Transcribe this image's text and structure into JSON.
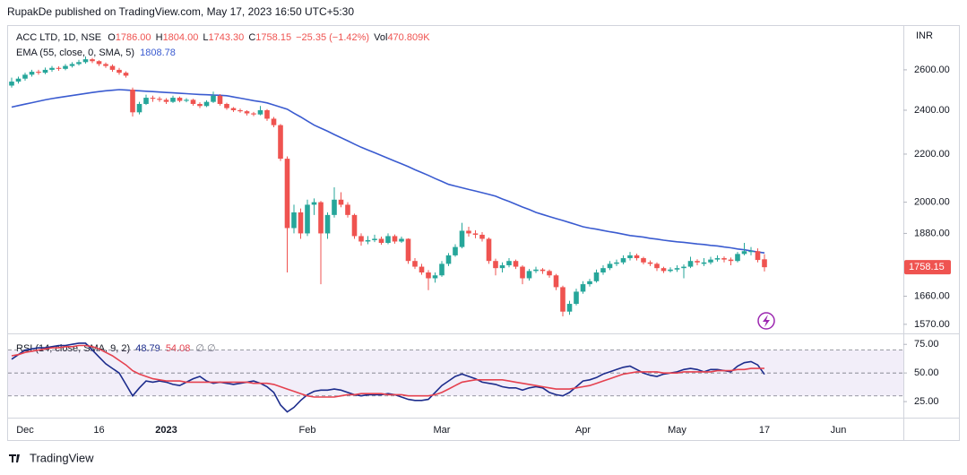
{
  "page_header": "RupakDe published on TradingView.com, May 17, 2023 16:50 UTC+5:30",
  "footer": "TradingView",
  "chart_data": [
    {
      "type": "candlestick",
      "legend": {
        "symbol": "ACC LTD, 1D, NSE",
        "fields": [
          {
            "label": "O",
            "value": "1786.00"
          },
          {
            "label": "H",
            "value": "1804.00"
          },
          {
            "label": "L",
            "value": "1743.30"
          },
          {
            "label": "C",
            "value": "1758.15"
          }
        ],
        "change": "−25.35 (−1.42%)",
        "volume_label": "Vol",
        "volume": "470.809K"
      },
      "currency": "INR",
      "price_tag": "1758.15",
      "up_color": "#26a69a",
      "down_color": "#ef5350",
      "log_scale": true,
      "ylim": [
        1542,
        2831
      ],
      "yticks": [
        {
          "value": 2600,
          "label": "2600.00"
        },
        {
          "value": 2400,
          "label": "2400.00"
        },
        {
          "value": 2200,
          "label": "2200.00"
        },
        {
          "value": 2000,
          "label": "2000.00"
        },
        {
          "value": 1880,
          "label": "1880.00"
        },
        {
          "value": 1660,
          "label": "1660.00"
        },
        {
          "value": 1570,
          "label": "1570.00"
        }
      ],
      "categories": [
        null,
        null,
        "Dec",
        null,
        null,
        null,
        null,
        null,
        null,
        null,
        null,
        null,
        null,
        "16",
        null,
        null,
        null,
        null,
        null,
        null,
        null,
        null,
        null,
        "2023",
        null,
        null,
        null,
        null,
        null,
        null,
        null,
        null,
        null,
        null,
        null,
        null,
        null,
        null,
        null,
        null,
        null,
        null,
        null,
        null,
        "Feb",
        null,
        null,
        null,
        null,
        null,
        null,
        null,
        null,
        null,
        null,
        null,
        null,
        null,
        null,
        null,
        null,
        null,
        null,
        null,
        "Mar",
        null,
        null,
        null,
        null,
        null,
        null,
        null,
        null,
        null,
        null,
        null,
        null,
        null,
        null,
        null,
        null,
        null,
        null,
        null,
        null,
        "Apr",
        null,
        null,
        null,
        null,
        null,
        null,
        null,
        null,
        null,
        null,
        null,
        null,
        null,
        "May",
        null,
        null,
        null,
        null,
        null,
        null,
        null,
        null,
        null,
        null,
        null,
        null,
        "17",
        null,
        null,
        null,
        null,
        null,
        null,
        null,
        null,
        null,
        null,
        "Jun",
        null,
        null,
        null,
        null,
        null,
        null,
        null,
        null,
        null
      ],
      "open": [
        2520,
        2540,
        2555,
        2575,
        2590,
        2585,
        2600,
        2610,
        2605,
        2620,
        2630,
        2640,
        2655,
        2645,
        2630,
        2620,
        2600,
        2585,
        2500,
        2390,
        2430,
        2460,
        2455,
        2450,
        2440,
        2460,
        2445,
        2450,
        2430,
        2420,
        2440,
        2470,
        2430,
        2410,
        2400,
        2395,
        2385,
        2380,
        2400,
        2360,
        2330,
        2180,
        1900,
        1960,
        1880,
        1990,
        2000,
        1880,
        1950,
        2010,
        1990,
        1950,
        1870,
        1850,
        1855,
        1860,
        1845,
        1870,
        1850,
        1860,
        1780,
        1760,
        1740,
        1720,
        1730,
        1770,
        1800,
        1830,
        1890,
        1880,
        1875,
        1860,
        1780,
        1755,
        1765,
        1780,
        1760,
        1720,
        1745,
        1750,
        1745,
        1730,
        1690,
        1610,
        1635,
        1675,
        1700,
        1710,
        1740,
        1755,
        1770,
        1775,
        1790,
        1800,
        1790,
        1775,
        1770,
        1755,
        1745,
        1750,
        1755,
        1760,
        1780,
        1770,
        1775,
        1785,
        1790,
        1785,
        1780,
        1805,
        1812,
        1815,
        1786,
        null,
        null,
        null,
        null,
        null,
        null,
        null,
        null,
        null,
        null,
        null,
        null,
        null,
        null,
        null,
        null,
        null,
        null,
        null,
        null
      ],
      "high": [
        2560,
        2565,
        2585,
        2600,
        2600,
        2612,
        2620,
        2618,
        2630,
        2640,
        2652,
        2670,
        2662,
        2650,
        2638,
        2628,
        2610,
        2592,
        2510,
        2440,
        2475,
        2470,
        2465,
        2458,
        2470,
        2466,
        2458,
        2455,
        2438,
        2448,
        2490,
        2478,
        2436,
        2415,
        2408,
        2400,
        2392,
        2420,
        2405,
        2368,
        2335,
        2190,
        1990,
        1975,
        2010,
        2015,
        2005,
        1960,
        2060,
        2040,
        2000,
        1955,
        1880,
        1870,
        1875,
        1868,
        1880,
        1876,
        1868,
        1862,
        1790,
        1770,
        1748,
        1740,
        1780,
        1808,
        1840,
        1920,
        1905,
        1892,
        1885,
        1865,
        1788,
        1775,
        1790,
        1785,
        1765,
        1752,
        1760,
        1755,
        1750,
        1735,
        1695,
        1645,
        1685,
        1710,
        1718,
        1750,
        1765,
        1780,
        1785,
        1800,
        1812,
        1806,
        1795,
        1782,
        1775,
        1760,
        1758,
        1765,
        1768,
        1795,
        1786,
        1790,
        1795,
        1800,
        1796,
        1792,
        1812,
        1845,
        1830,
        1825,
        1804,
        null,
        null,
        null,
        null,
        null,
        null,
        null,
        null,
        null,
        null,
        null,
        null,
        null,
        null,
        null,
        null,
        null,
        null,
        null,
        null
      ],
      "low": [
        2510,
        2530,
        2545,
        2565,
        2575,
        2578,
        2590,
        2595,
        2598,
        2612,
        2622,
        2632,
        2635,
        2620,
        2610,
        2590,
        2575,
        2560,
        2370,
        2380,
        2425,
        2440,
        2440,
        2430,
        2435,
        2438,
        2438,
        2422,
        2410,
        2415,
        2435,
        2422,
        2402,
        2392,
        2388,
        2375,
        2372,
        2376,
        2350,
        2320,
        2170,
        1740,
        1880,
        1860,
        1870,
        1950,
        1700,
        1860,
        1940,
        1980,
        1940,
        1860,
        1835,
        1840,
        1848,
        1838,
        1840,
        1842,
        1845,
        1770,
        1752,
        1732,
        1680,
        1705,
        1725,
        1762,
        1795,
        1825,
        1868,
        1862,
        1850,
        1770,
        1730,
        1740,
        1758,
        1752,
        1700,
        1712,
        1738,
        1735,
        1722,
        1680,
        1595,
        1600,
        1630,
        1668,
        1692,
        1705,
        1732,
        1748,
        1762,
        1768,
        1782,
        1782,
        1768,
        1762,
        1745,
        1738,
        1740,
        1742,
        1720,
        1755,
        1765,
        1762,
        1768,
        1778,
        1775,
        1765,
        1775,
        1800,
        1800,
        1775,
        1743.3,
        null,
        null,
        null,
        null,
        null,
        null,
        null,
        null,
        null,
        null,
        null,
        null,
        null,
        null,
        null,
        null,
        null,
        null,
        null,
        null
      ],
      "close": [
        2540,
        2555,
        2575,
        2590,
        2585,
        2600,
        2610,
        2605,
        2620,
        2630,
        2640,
        2655,
        2645,
        2630,
        2620,
        2600,
        2585,
        2570,
        2390,
        2430,
        2460,
        2455,
        2450,
        2440,
        2460,
        2445,
        2450,
        2430,
        2420,
        2440,
        2470,
        2430,
        2410,
        2400,
        2395,
        2385,
        2380,
        2400,
        2360,
        2330,
        2180,
        1900,
        1960,
        1880,
        1990,
        2000,
        1880,
        1950,
        2010,
        1990,
        1950,
        1870,
        1850,
        1855,
        1860,
        1845,
        1870,
        1850,
        1860,
        1780,
        1760,
        1740,
        1720,
        1730,
        1770,
        1800,
        1830,
        1890,
        1880,
        1875,
        1860,
        1780,
        1755,
        1765,
        1780,
        1760,
        1720,
        1745,
        1750,
        1745,
        1730,
        1690,
        1610,
        1635,
        1675,
        1700,
        1710,
        1740,
        1755,
        1770,
        1775,
        1790,
        1800,
        1790,
        1775,
        1770,
        1755,
        1745,
        1750,
        1755,
        1760,
        1780,
        1775,
        1775,
        1785,
        1790,
        1785,
        1780,
        1805,
        1815,
        1815,
        1783.5,
        1758.15,
        null,
        null,
        null,
        null,
        null,
        null,
        null,
        null,
        null,
        null,
        null,
        null,
        null,
        null,
        null,
        null,
        null,
        null,
        null,
        null
      ],
      "ema": {
        "label": "EMA (55, close, 0, SMA, 5)",
        "value_label": "1808.78",
        "color": "#3a5bd0",
        "values": [
          2415,
          2422,
          2429,
          2436,
          2443,
          2450,
          2456,
          2461,
          2466,
          2471,
          2476,
          2481,
          2486,
          2490,
          2494,
          2497,
          2500,
          2498,
          2496,
          2494,
          2492,
          2490,
          2488,
          2486,
          2484,
          2482,
          2480,
          2478,
          2476,
          2475,
          2473,
          2472,
          2470,
          2464,
          2458,
          2452,
          2446,
          2441,
          2435,
          2425,
          2415,
          2405,
          2386,
          2368,
          2349,
          2330,
          2316,
          2302,
          2287,
          2273,
          2259,
          2244,
          2230,
          2218,
          2206,
          2194,
          2182,
          2170,
          2158,
          2146,
          2133,
          2121,
          2109,
          2096,
          2084,
          2072,
          2065,
          2058,
          2051,
          2045,
          2038,
          2031,
          2024,
          2013,
          2003,
          1992,
          1981,
          1971,
          1960,
          1952,
          1944,
          1936,
          1929,
          1921,
          1913,
          1905,
          1900,
          1896,
          1891,
          1886,
          1882,
          1877,
          1872,
          1869,
          1866,
          1862,
          1859,
          1855,
          1852,
          1849,
          1847,
          1844,
          1841,
          1839,
          1836,
          1834,
          1830,
          1827,
          1823,
          1820,
          1816,
          1812,
          1808.78,
          null,
          null,
          null,
          null,
          null,
          null,
          null,
          null,
          null,
          null,
          null,
          null,
          null,
          null,
          null,
          null,
          null,
          null,
          null,
          null
        ]
      }
    },
    {
      "type": "line",
      "label": "RSI (14, close, SMA, 9, 2)",
      "extra": "∅  ∅",
      "ylim": [
        11,
        83
      ],
      "yticks": [
        {
          "value": 75,
          "label": "75.00"
        },
        {
          "value": 50,
          "label": "50.00"
        },
        {
          "value": 25,
          "label": "25.00"
        }
      ],
      "band": [
        30,
        70
      ],
      "band_color": "#7e57c2",
      "hlines": [
        70,
        50,
        30
      ],
      "series": [
        {
          "color": "#1c2c8c",
          "value_label": "48.79",
          "values": [
            62,
            66,
            70,
            71,
            72,
            72,
            73,
            74,
            74,
            75,
            76,
            76,
            70,
            64,
            58,
            54,
            50,
            40,
            30,
            37,
            43,
            42,
            43,
            42,
            40,
            39,
            42,
            45,
            47,
            43,
            41,
            42,
            41,
            40,
            41,
            42,
            43,
            41,
            38,
            33,
            22,
            16,
            20,
            26,
            31,
            34,
            35,
            35,
            36,
            35,
            33,
            31,
            30,
            31,
            31,
            31,
            32,
            31,
            29,
            27,
            26,
            26,
            27,
            33,
            39,
            43,
            47,
            49,
            47,
            45,
            42,
            41,
            40,
            38,
            37,
            37,
            35,
            37,
            38,
            37,
            33,
            31,
            30,
            33,
            38,
            43,
            44,
            46,
            49,
            51,
            53,
            55,
            56,
            53,
            50,
            48,
            47,
            49,
            50,
            51,
            53,
            54,
            53,
            51,
            53,
            53,
            52,
            51,
            56,
            59,
            60,
            57,
            48.79,
            null,
            null,
            null,
            null,
            null,
            null,
            null,
            null,
            null,
            null,
            null,
            null,
            null,
            null,
            null,
            null,
            null,
            null,
            null,
            null
          ]
        },
        {
          "color": "#e5414f",
          "value_label": "54.08",
          "values": [
            65,
            66,
            68,
            69,
            70,
            71,
            72,
            72,
            73,
            73,
            74,
            74,
            73,
            71,
            68,
            65,
            61,
            57,
            52,
            49,
            47,
            45,
            44,
            43,
            43,
            43,
            42,
            42,
            42,
            42,
            42,
            42,
            42,
            42,
            42,
            42,
            41,
            41,
            41,
            40,
            38,
            36,
            34,
            32,
            30,
            29,
            29,
            29,
            29,
            30,
            31,
            31,
            32,
            32,
            32,
            32,
            31,
            31,
            31,
            30,
            30,
            30,
            30,
            31,
            33,
            36,
            39,
            42,
            43,
            44,
            44,
            44,
            44,
            44,
            43,
            42,
            41,
            40,
            39,
            38,
            37,
            36,
            36,
            36,
            37,
            38,
            39,
            41,
            43,
            45,
            47,
            49,
            50,
            51,
            51,
            51,
            51,
            50,
            50,
            50,
            51,
            51,
            51,
            51,
            51,
            52,
            52,
            52,
            53,
            53,
            54,
            54,
            54.08,
            null,
            null,
            null,
            null,
            null,
            null,
            null,
            null,
            null,
            null,
            null,
            null,
            null,
            null,
            null,
            null,
            null,
            null,
            null,
            null
          ]
        }
      ]
    }
  ]
}
